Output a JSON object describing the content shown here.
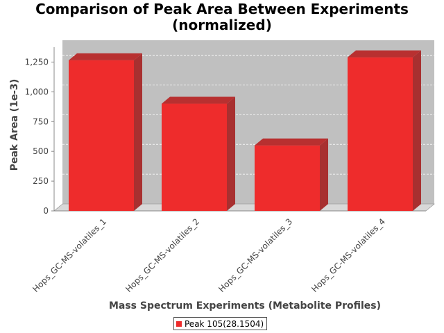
{
  "chart_data": {
    "type": "bar",
    "title": [
      "Comparison of Peak Area Between Experiments",
      "(normalized)"
    ],
    "xlabel": "Mass Spectrum Experiments (Metabolite Profiles)",
    "ylabel": "Peak Area (1e-3)",
    "categories": [
      "Hops_GC-MS-volatiles_1",
      "Hops_GC-MS-volatiles_2",
      "Hops_GC-MS-volatiles_3",
      "Hops_GC-MS-volatiles_4"
    ],
    "series": [
      {
        "name": "Peak 105(28.1504)",
        "values": [
          1265,
          900,
          550,
          1290
        ]
      }
    ],
    "ylim": [
      0,
      1375
    ],
    "yticks": [
      0,
      250,
      500,
      750,
      1000,
      1250
    ],
    "ytick_labels": [
      "0",
      "250",
      "500",
      "750",
      "1,000",
      "1,250"
    ],
    "grid": true,
    "legend_position": "bottom",
    "style": "3d",
    "colors": {
      "bar_front": "#ee2c2c",
      "bar_side": "#a83030",
      "bar_top": "#b83030",
      "plot_background": "#c0c0c0",
      "floor": "#d8d8d8",
      "gridline": "#ffffff"
    }
  }
}
